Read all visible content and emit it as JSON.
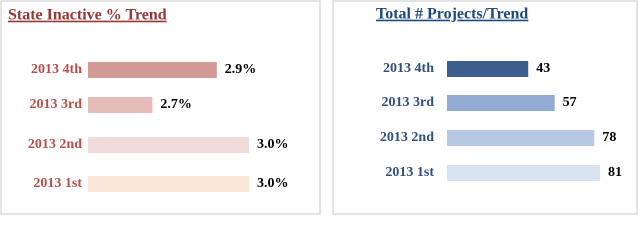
{
  "chart_data": [
    {
      "type": "barh",
      "title": "State Inactive % Trend",
      "categories": [
        "2013 4th",
        "2013 3rd",
        "2013 2nd",
        "2013 1st"
      ],
      "values": [
        2.9,
        2.7,
        3.0,
        3.0
      ],
      "value_labels": [
        "2.9%",
        "2.7%",
        "3.0%",
        "3.0%"
      ],
      "colors": [
        "#d49a96",
        "#e4bcba",
        "#f1dcda",
        "#fbe7da"
      ],
      "xlim": [
        2.5,
        3.0
      ],
      "title_color": "#953735",
      "label_color": "#b5504d"
    },
    {
      "type": "barh",
      "title": "Total # Projects/Trend",
      "categories": [
        "2013 4th",
        "2013 3rd",
        "2013 2nd",
        "2013 1st"
      ],
      "values": [
        43,
        57,
        78,
        81
      ],
      "colors": [
        "#3d5e8c",
        "#93abd3",
        "#b6c8e2",
        "#d8e2f0"
      ],
      "xlim": [
        0,
        90
      ],
      "title_color": "#1f497d",
      "label_color": "#2f4f82"
    }
  ]
}
